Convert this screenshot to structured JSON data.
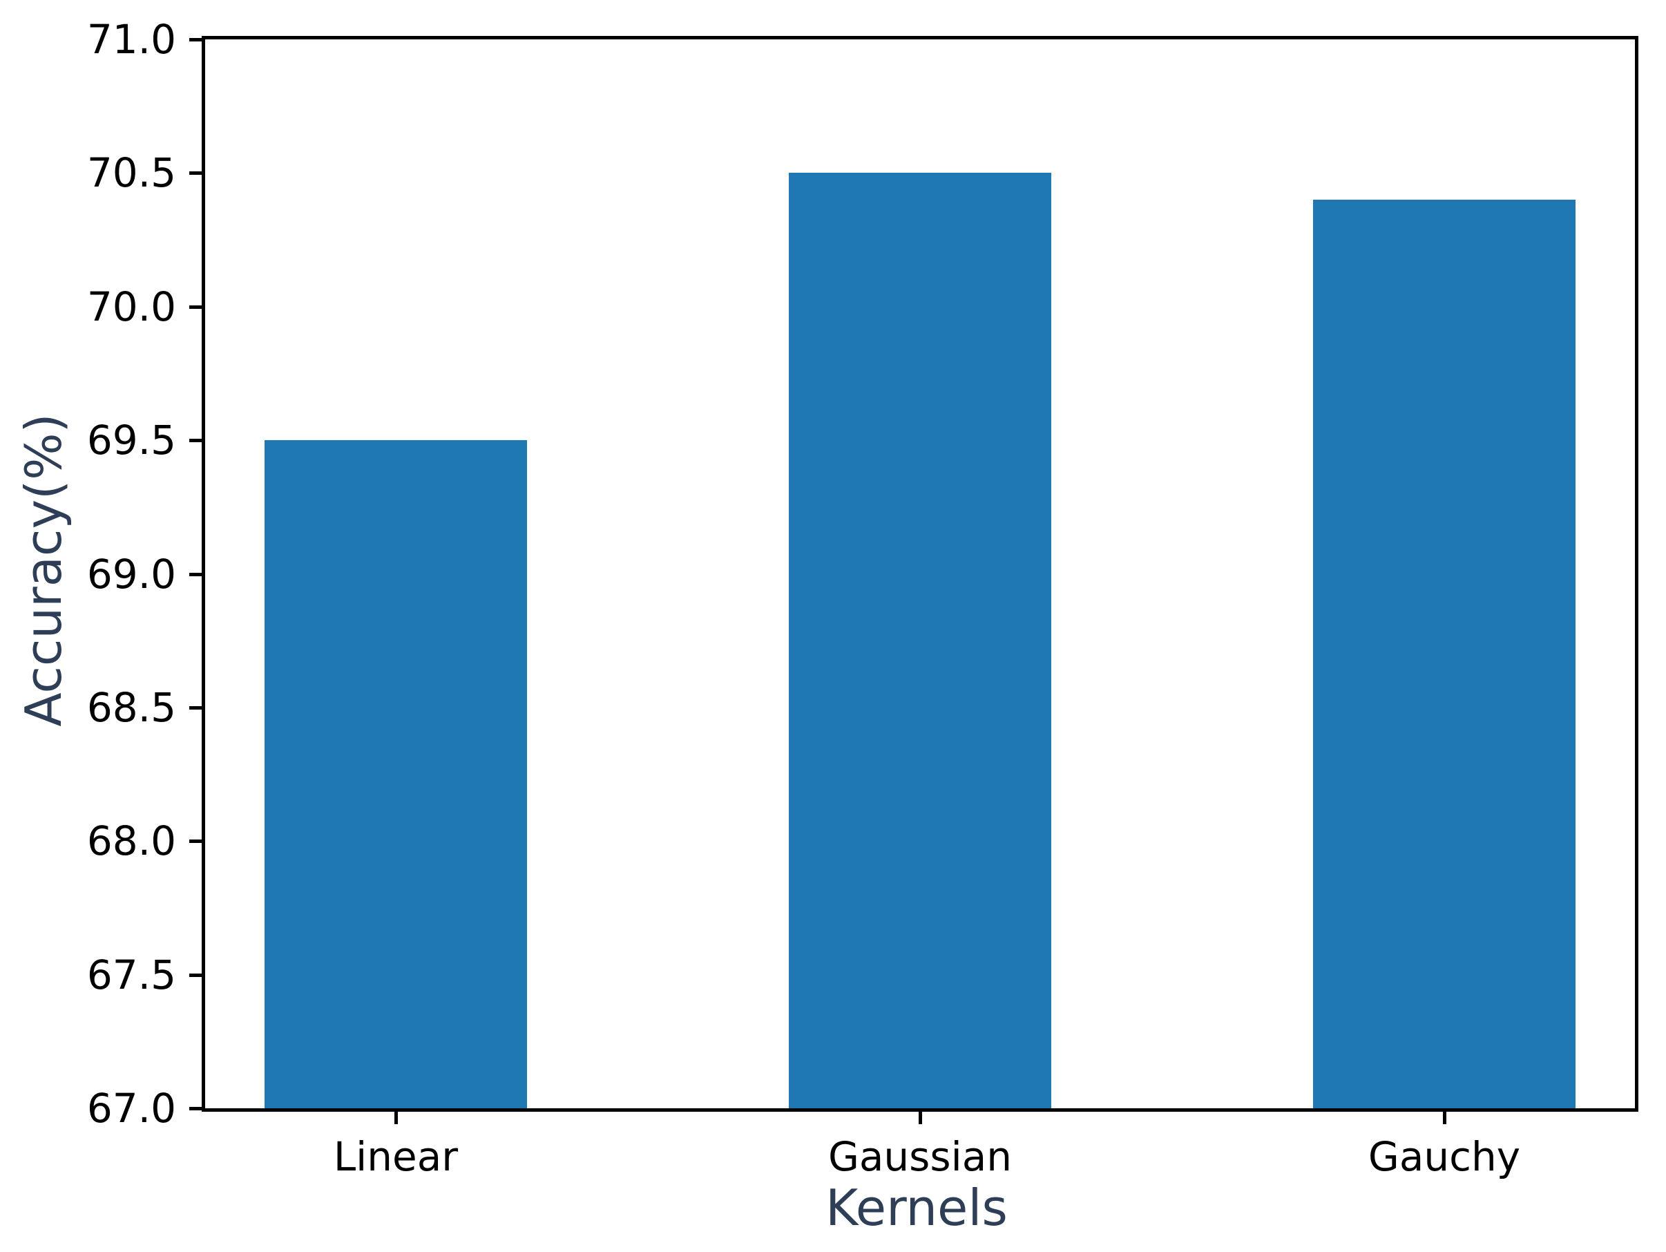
{
  "figure": {
    "background_color": "#ffffff"
  },
  "chart_data": {
    "type": "bar",
    "categories": [
      "Linear",
      "Gaussian",
      "Gauchy"
    ],
    "values": [
      69.5,
      70.5,
      70.4
    ],
    "title": "",
    "xlabel": "Kernels",
    "ylabel": "Accuracy(%)",
    "ylim": [
      67.0,
      71.0
    ],
    "ytick_step": 0.5,
    "ytick_labels": [
      "67.0",
      "67.5",
      "68.0",
      "68.5",
      "69.0",
      "69.5",
      "70.0",
      "70.5",
      "71.0"
    ],
    "grid": false,
    "legend": null,
    "colors": {
      "bar": "#1f77b4",
      "axis_label": "#2d3e56",
      "tick_label": "#000000",
      "spine": "#000000"
    }
  }
}
